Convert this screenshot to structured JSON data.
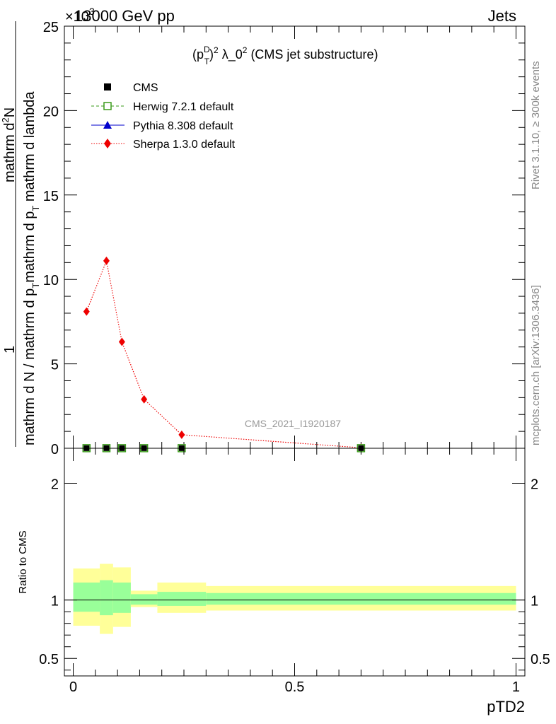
{
  "header": {
    "left": "13000 GeV pp",
    "right": "Jets",
    "exponent": "×10",
    "exponent_power": "3"
  },
  "side_labels": {
    "rivet": "Rivet 3.1.10, ≥ 300k events",
    "mcplots": "mcplots.cern.ch [arXiv:1306.3436]"
  },
  "colors": {
    "cms": "#000000",
    "herwig": "#3a9a1a",
    "pythia": "#0000cc",
    "sherpa": "#ee0000",
    "band_inner": "#99ff99",
    "band_outer": "#ffff99"
  },
  "chart_data": [
    {
      "type": "line",
      "title": "(p_T^D)^2 λ_0^2 (CMS jet substructure)",
      "title_parts": {
        "base": "(p",
        "sup1": "D",
        "sub1": "T",
        "close": ")",
        "sup2": "2",
        "lambda": " λ_0",
        "sup3": "2",
        "tail": " (CMS jet substructure)"
      },
      "ylabel": "1 / mathrm d N / mathrm d p_T mathrm d p_T mathrm d lambda mathrm d^2N",
      "ylabel_parts": {
        "numerator": "1",
        "den_a": "mathrm d N / mathrm d p",
        "den_sub": "T",
        "den_b": "mathrm d p",
        "den_sub2": "T",
        "den_c": " mathrm d lambda",
        "num2_a": "mathrm d",
        "num2_sup": "2",
        "num2_b": "N"
      },
      "ylim": [
        0,
        25000
      ],
      "xlim": [
        -0.02,
        1.02
      ],
      "yticks": [
        0,
        5,
        10,
        15,
        20,
        25
      ],
      "watermark": "CMS_2021_I1920187",
      "legend_position": "top-left",
      "series": [
        {
          "name": "CMS",
          "x": [
            0.03,
            0.075,
            0.11,
            0.16,
            0.245,
            0.65
          ],
          "y": [
            5,
            5,
            5,
            5,
            5,
            5
          ]
        },
        {
          "name": "Herwig 7.2.1 default",
          "x": [
            0.03,
            0.075,
            0.11,
            0.16,
            0.245,
            0.65
          ],
          "y": [
            5,
            5,
            5,
            5,
            5,
            5
          ]
        },
        {
          "name": "Pythia 8.308 default",
          "x": [
            0.03,
            0.075,
            0.11,
            0.16,
            0.245,
            0.65
          ],
          "y": [
            5,
            5,
            5,
            5,
            5,
            5
          ]
        },
        {
          "name": "Sherpa 1.3.0 default",
          "x": [
            0.03,
            0.075,
            0.11,
            0.16,
            0.245,
            0.65
          ],
          "y": [
            8100,
            11100,
            6300,
            2900,
            800,
            30
          ]
        }
      ]
    },
    {
      "type": "area",
      "ylabel": "Ratio to CMS",
      "xlabel": "pTD2",
      "ylim": [
        0.35,
        2.3
      ],
      "yticks": [
        0.5,
        1,
        2
      ],
      "xticks": [
        0,
        0.5,
        1
      ],
      "bins": [
        {
          "x0": 0.0,
          "x1": 0.06,
          "inner": [
            0.9,
            1.15
          ],
          "outer": [
            0.78,
            1.27
          ]
        },
        {
          "x0": 0.06,
          "x1": 0.09,
          "inner": [
            0.87,
            1.17
          ],
          "outer": [
            0.71,
            1.31
          ]
        },
        {
          "x0": 0.09,
          "x1": 0.13,
          "inner": [
            0.89,
            1.15
          ],
          "outer": [
            0.77,
            1.28
          ]
        },
        {
          "x0": 0.13,
          "x1": 0.19,
          "inner": [
            0.96,
            1.05
          ],
          "outer": [
            0.94,
            1.08
          ]
        },
        {
          "x0": 0.19,
          "x1": 0.3,
          "inner": [
            0.95,
            1.07
          ],
          "outer": [
            0.89,
            1.15
          ]
        },
        {
          "x0": 0.3,
          "x1": 1.0,
          "inner": [
            0.96,
            1.06
          ],
          "outer": [
            0.91,
            1.12
          ]
        }
      ],
      "reference": 1
    }
  ]
}
